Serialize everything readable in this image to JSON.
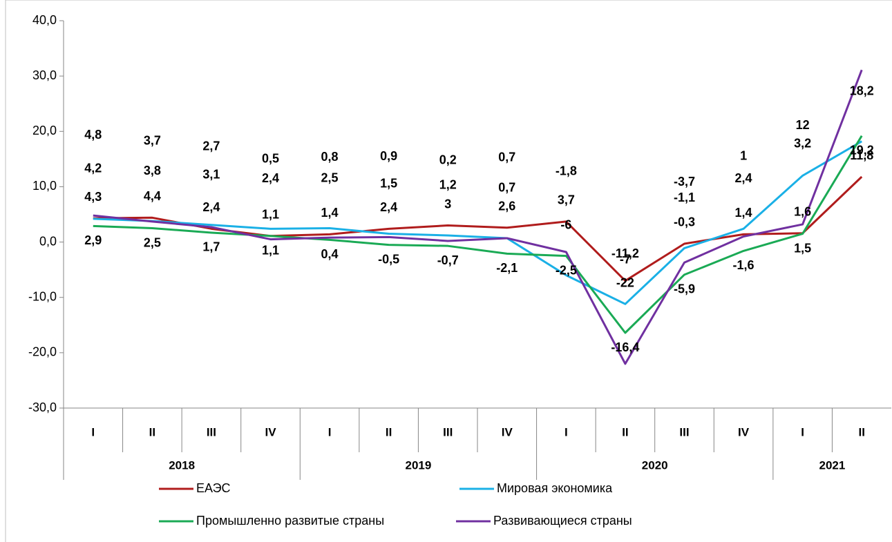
{
  "chart_data": {
    "type": "line",
    "category_groups": [
      {
        "name": "2018",
        "categories": [
          "I",
          "II",
          "III",
          "IV"
        ]
      },
      {
        "name": "2019",
        "categories": [
          "I",
          "II",
          "III",
          "IV"
        ]
      },
      {
        "name": "2020",
        "categories": [
          "I",
          "II",
          "III",
          "IV"
        ]
      },
      {
        "name": "2021",
        "categories": [
          "I",
          "II"
        ]
      }
    ],
    "ylim": [
      -30,
      40
    ],
    "yticks": [
      {
        "value": -30,
        "label": "-30,0"
      },
      {
        "value": -20,
        "label": "-20,0"
      },
      {
        "value": -10,
        "label": "-10,0"
      },
      {
        "value": 0,
        "label": "0,0"
      },
      {
        "value": 10,
        "label": "10,0"
      },
      {
        "value": 20,
        "label": "20,0"
      },
      {
        "value": 30,
        "label": "30,0"
      },
      {
        "value": 40,
        "label": "40,0"
      }
    ],
    "series": [
      {
        "name": "ЕАЭС",
        "color": "#b01c1c",
        "values": [
          4.3,
          4.4,
          2.4,
          1.1,
          1.4,
          2.4,
          3,
          2.6,
          3.7,
          -7,
          -0.3,
          1.4,
          1.6,
          11.8
        ],
        "value_labels": [
          "4,3",
          "4,4",
          "2,4",
          "1,1",
          "1,4",
          "2,4",
          "3",
          "2,6",
          "3,7",
          "-7",
          "-0,3",
          "1,4",
          "1,6",
          "11,8"
        ]
      },
      {
        "name": "Мировая экономика",
        "color": "#1ab0e6",
        "values": [
          4.2,
          3.8,
          3.1,
          2.4,
          2.5,
          1.5,
          1.2,
          0.7,
          -6,
          -11.2,
          -1.1,
          2.4,
          12,
          18.2
        ],
        "value_labels": [
          "4,2",
          "3,8",
          "3,1",
          "2,4",
          "2,5",
          "1,5",
          "1,2",
          "0,7",
          "-6",
          "-11,2",
          "-1,1",
          "2,4",
          "12",
          "18,2"
        ]
      },
      {
        "name": "Промышленно развитые страны",
        "color": "#1aaa55",
        "values": [
          2.9,
          2.5,
          1.7,
          1.1,
          0.4,
          -0.5,
          -0.7,
          -2.1,
          -2.5,
          -16.4,
          -5.9,
          -1.6,
          1.5,
          19.2
        ],
        "value_labels": [
          "2,9",
          "2,5",
          "1,7",
          "1,1",
          "0,4",
          "-0,5",
          "-0,7",
          "-2,1",
          "-2,5",
          "-16,4",
          "-5,9",
          "-1,6",
          "1,5",
          "19,2"
        ]
      },
      {
        "name": "Развивающиеся страны",
        "color": "#7030a0",
        "values": [
          4.8,
          3.7,
          2.7,
          0.5,
          0.8,
          0.9,
          0.2,
          0.7,
          -1.8,
          -22,
          -3.7,
          1,
          3.2,
          31.1
        ],
        "value_labels": [
          "4,8",
          "3,7",
          "2,7",
          "0,5",
          "0,8",
          "0,9",
          "0,2",
          "0,7",
          "-1,8",
          "-22",
          "-3,7",
          "1",
          "3,2",
          "31,1"
        ]
      }
    ]
  }
}
